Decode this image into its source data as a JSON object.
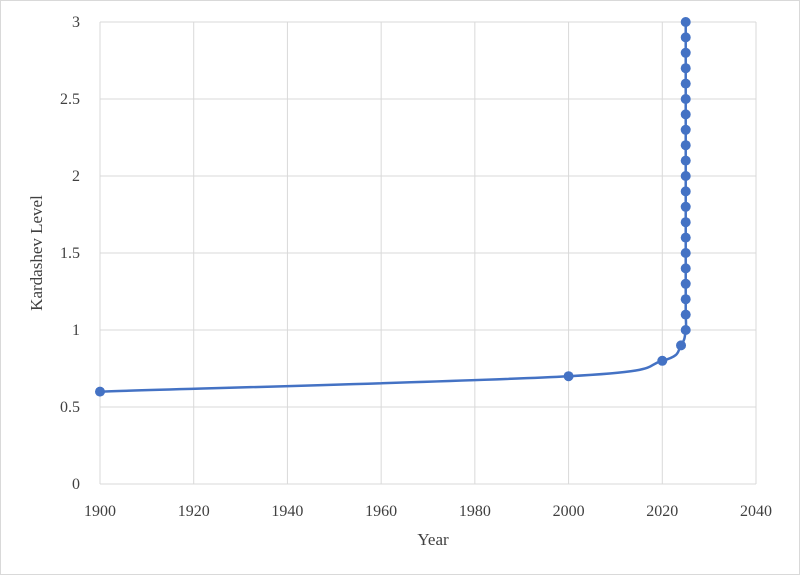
{
  "chart_data": {
    "type": "scatter",
    "title": "",
    "xlabel": "Year",
    "ylabel": "Kardashev Level",
    "xlim": [
      1900,
      2040
    ],
    "ylim": [
      0,
      3
    ],
    "xticks": [
      1900,
      1920,
      1940,
      1960,
      1980,
      2000,
      2020,
      2040
    ],
    "yticks": [
      0,
      0.5,
      1,
      1.5,
      2,
      2.5,
      3
    ],
    "ytick_labels": [
      "0",
      "0.5",
      "1",
      "1.5",
      "2",
      "2.5",
      "3"
    ],
    "grid": true,
    "legend": "none",
    "line_style": "smoothed",
    "color": "#4472c4",
    "series": [
      {
        "x": [
          1900,
          2000,
          2020,
          2024,
          2025,
          2025,
          2025,
          2025,
          2025,
          2025,
          2025,
          2025,
          2025,
          2025,
          2025,
          2025,
          2025,
          2025,
          2025,
          2025,
          2025,
          2025,
          2025,
          2025,
          2025
        ],
        "y": [
          0.6,
          0.7,
          0.8,
          0.9,
          1.0,
          1.1,
          1.2,
          1.3,
          1.4,
          1.5,
          1.6,
          1.7,
          1.8,
          1.9,
          2.0,
          2.1,
          2.2,
          2.3,
          2.4,
          2.5,
          2.6,
          2.7,
          2.8,
          2.9,
          3.0
        ]
      }
    ]
  }
}
